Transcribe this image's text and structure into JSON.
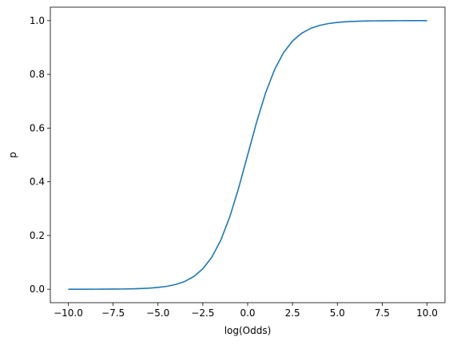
{
  "chart_data": {
    "type": "line",
    "x_label": "log(Odds)",
    "y_label": "p",
    "x": [
      -10,
      -9.5,
      -9,
      -8.5,
      -8,
      -7.5,
      -7,
      -6.5,
      -6,
      -5.5,
      -5,
      -4.5,
      -4,
      -3.5,
      -3,
      -2.5,
      -2,
      -1.5,
      -1,
      -0.5,
      0,
      0.5,
      1,
      1.5,
      2,
      2.5,
      3,
      3.5,
      4,
      4.5,
      5,
      5.5,
      6,
      6.5,
      7,
      7.5,
      8,
      8.5,
      9,
      9.5,
      10
    ],
    "values": [
      0,
      0.0001,
      0.0001,
      0.0002,
      0.0003,
      0.0006,
      0.0009,
      0.0015,
      0.0025,
      0.0041,
      0.0067,
      0.011,
      0.018,
      0.0293,
      0.0474,
      0.0759,
      0.1192,
      0.1824,
      0.2689,
      0.3775,
      0.5,
      0.6225,
      0.7311,
      0.8176,
      0.8808,
      0.9241,
      0.9526,
      0.9707,
      0.982,
      0.989,
      0.9933,
      0.9959,
      0.9975,
      0.9985,
      0.9991,
      0.9994,
      0.9997,
      0.9998,
      0.9999,
      0.9999,
      1
    ],
    "color": "#1f77b4",
    "xlim": [
      -11,
      11
    ],
    "ylim": [
      -0.05,
      1.05
    ],
    "xticks": [
      {
        "value": -10,
        "label": "−10.0"
      },
      {
        "value": -7.5,
        "label": "−7.5"
      },
      {
        "value": -5,
        "label": "−5.0"
      },
      {
        "value": -2.5,
        "label": "−2.5"
      },
      {
        "value": 0,
        "label": "0.0"
      },
      {
        "value": 2.5,
        "label": "2.5"
      },
      {
        "value": 5,
        "label": "5.0"
      },
      {
        "value": 7.5,
        "label": "7.5"
      },
      {
        "value": 10,
        "label": "10.0"
      }
    ],
    "yticks": [
      {
        "value": 0,
        "label": "0.0"
      },
      {
        "value": 0.2,
        "label": "0.2"
      },
      {
        "value": 0.4,
        "label": "0.4"
      },
      {
        "value": 0.6,
        "label": "0.6"
      },
      {
        "value": 0.8,
        "label": "0.8"
      },
      {
        "value": 1,
        "label": "1.0"
      }
    ],
    "grid": false
  }
}
